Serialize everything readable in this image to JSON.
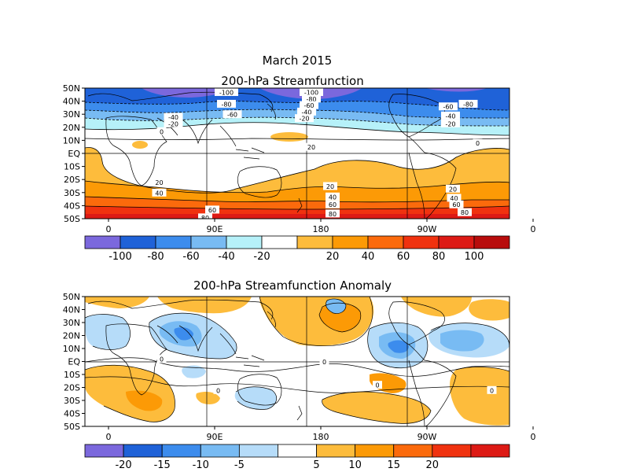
{
  "title": "March 2015",
  "panel1": {
    "title": "200-hPa Streamfunction",
    "lat_labels": [
      "50N",
      "40N",
      "30N",
      "20N",
      "10N",
      "EQ",
      "10S",
      "20S",
      "30S",
      "40S",
      "50S"
    ],
    "lon_labels": [
      "0",
      "90E",
      "180",
      "90W",
      "0"
    ],
    "colorbar": {
      "labels": [
        "-100",
        "-80",
        "-60",
        "-40",
        "-20",
        "20",
        "40",
        "60",
        "80",
        "100"
      ],
      "colors": [
        "#7b68dd",
        "#1f62d8",
        "#3c8ced",
        "#78bbf3",
        "#b6f1f9",
        "#ffffff",
        "#fdbc3c",
        "#fc9a06",
        "#fb6a0c",
        "#f0320f",
        "#dd1a15",
        "#b80c0c"
      ]
    },
    "contour_labels": [
      {
        "text": "-100",
        "lon": 100,
        "lat": 47
      },
      {
        "text": "-80",
        "lon": 100,
        "lat": 38
      },
      {
        "text": "-60",
        "lon": 105,
        "lat": 30
      },
      {
        "text": "-40",
        "lon": 55,
        "lat": 28
      },
      {
        "text": "-20",
        "lon": 55,
        "lat": 23
      },
      {
        "text": "0",
        "lon": 45,
        "lat": 17
      },
      {
        "text": "-100",
        "lon": 172,
        "lat": 47
      },
      {
        "text": "-80",
        "lon": 172,
        "lat": 42
      },
      {
        "text": "-60",
        "lon": 170,
        "lat": 37
      },
      {
        "text": "-40",
        "lon": 168,
        "lat": 32
      },
      {
        "text": "-20",
        "lon": 166,
        "lat": 27
      },
      {
        "text": "20",
        "lon": 172,
        "lat": 5
      },
      {
        "text": "-80",
        "lon": 305,
        "lat": 38
      },
      {
        "text": "-60",
        "lon": 288,
        "lat": 36
      },
      {
        "text": "-40",
        "lon": 290,
        "lat": 29
      },
      {
        "text": "-20",
        "lon": 290,
        "lat": 23
      },
      {
        "text": "0",
        "lon": 313,
        "lat": 8
      },
      {
        "text": "20",
        "lon": 43,
        "lat": -22
      },
      {
        "text": "40",
        "lon": 43,
        "lat": -30
      },
      {
        "text": "20",
        "lon": 188,
        "lat": -25
      },
      {
        "text": "40",
        "lon": 190,
        "lat": -33
      },
      {
        "text": "60",
        "lon": 190,
        "lat": -39
      },
      {
        "text": "80",
        "lon": 190,
        "lat": -46
      },
      {
        "text": "60",
        "lon": 88,
        "lat": -43
      },
      {
        "text": "80",
        "lon": 82,
        "lat": -49
      },
      {
        "text": "20",
        "lon": 292,
        "lat": -27
      },
      {
        "text": "40",
        "lon": 293,
        "lat": -34
      },
      {
        "text": "60",
        "lon": 295,
        "lat": -39
      },
      {
        "text": "80",
        "lon": 302,
        "lat": -45
      }
    ]
  },
  "panel2": {
    "title": "200-hPa Streamfunction Anomaly",
    "lat_labels": [
      "50N",
      "40N",
      "30N",
      "20N",
      "10N",
      "EQ",
      "10S",
      "20S",
      "30S",
      "40S",
      "50S"
    ],
    "lon_labels": [
      "0",
      "90E",
      "180",
      "90W",
      "0"
    ],
    "colorbar": {
      "labels": [
        "-20",
        "-15",
        "-10",
        "-5",
        "5",
        "10",
        "15",
        "20"
      ],
      "colors": [
        "#7b68dd",
        "#1f62d8",
        "#3c8ced",
        "#78bbf3",
        "#b6dcf9",
        "#ffffff",
        "#fdbc3c",
        "#fc9a06",
        "#fb6a0c",
        "#f0320f",
        "#dd1a15"
      ]
    },
    "contour_labels": [
      {
        "text": "0",
        "lon": 183,
        "lat": 0
      },
      {
        "text": "0",
        "lon": 93,
        "lat": -22
      },
      {
        "text": "0",
        "lon": 228,
        "lat": -18
      },
      {
        "text": "0",
        "lon": 325,
        "lat": -22
      },
      {
        "text": "0",
        "lon": 45,
        "lat": 2
      }
    ]
  }
}
